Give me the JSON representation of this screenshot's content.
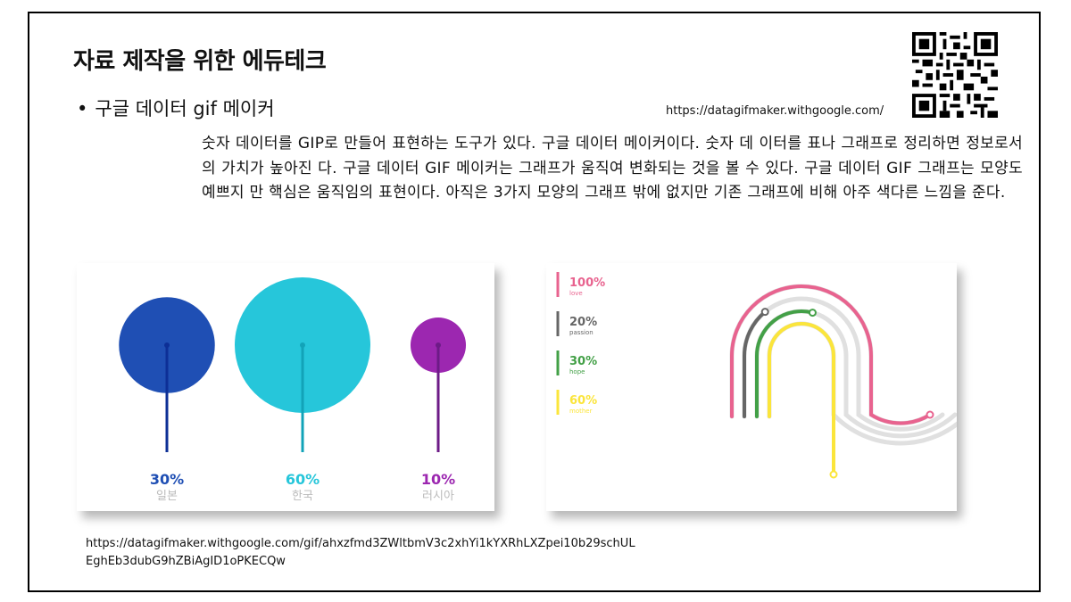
{
  "title": "자료 제작을 위한 에듀테크",
  "bullet": {
    "marker": "•",
    "text": "구글 데이터 gif 메이커"
  },
  "url_top": "https://datagifmaker.withgoogle.com/",
  "body_text": "숫자 데이터를 GIP로 만들어 표현하는 도구가 있다. 구글 데이터 메이커이다. 숫자 데 이터를 표나 그래프로 정리하면 정보로서의 가치가 높아진 다. 구글 데이터 GIF 메이커는 그래프가 움직여 변화되는 것을 볼 수 있다. 구글 데이터 GIF 그래프는 모양도 예쁘지 만 핵심은 움직임의 표현이다. 아직은 3가지 모양의 그래프 밖에 없지만 기존 그래프에 비해 아주 색다른 느낌을 준다.",
  "url_bottom": "https://datagifmaker.withgoogle.com/gif/ahxzfmd3ZWltbmV3c2xhYi1kYXRhLXZpei10b29schULEghEb3dubG9hZBiAgID1oPKECQw",
  "qr_icon": "qr-code-icon",
  "circles_chart": {
    "type": "bubble",
    "items": [
      {
        "value": 30,
        "value_label": "30%",
        "label": "일본",
        "color": "#1f4fb4",
        "stem": "#0d2f96"
      },
      {
        "value": 60,
        "value_label": "60%",
        "label": "한국",
        "color": "#26c6da",
        "stem": "#12a3b8"
      },
      {
        "value": 10,
        "value_label": "10%",
        "label": "러시아",
        "color": "#9c27b0",
        "stem": "#6d1b87"
      }
    ],
    "label_color": "#bbbbbb"
  },
  "tracks_chart": {
    "type": "race-track",
    "legend": [
      {
        "value_label": "100%",
        "label": "love",
        "color": "#e8638f"
      },
      {
        "value_label": "20%",
        "label": "passion",
        "color": "#666666"
      },
      {
        "value_label": "30%",
        "label": "hope",
        "color": "#43a047"
      },
      {
        "value_label": "60%",
        "label": "mother",
        "color": "#fbe53b"
      }
    ],
    "track_color": "#e0e0e0"
  }
}
